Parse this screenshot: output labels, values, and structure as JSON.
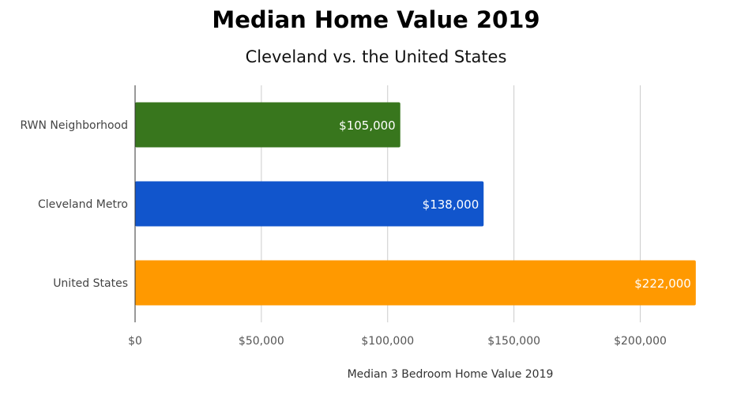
{
  "chart_data": {
    "type": "bar",
    "orientation": "horizontal",
    "title": "Median Home Value 2019",
    "subtitle": "Cleveland vs. the United States",
    "xlabel": "Median 3 Bedroom Home Value 2019",
    "ylabel": "",
    "categories": [
      "RWN Neighborhood",
      "Cleveland Metro",
      "United States"
    ],
    "values": [
      105000,
      138000,
      222000
    ],
    "data_labels": [
      "$105,000",
      "$138,000",
      "$222,000"
    ],
    "colors": [
      "#38761d",
      "#1155cc",
      "#ff9900"
    ],
    "xlim": [
      0,
      230000
    ],
    "xticks": [
      0,
      50000,
      100000,
      150000,
      200000
    ],
    "xtick_labels": [
      "$0",
      "$50,000",
      "$100,000",
      "$150,000",
      "$200,000"
    ],
    "grid": true,
    "legend": "none"
  }
}
